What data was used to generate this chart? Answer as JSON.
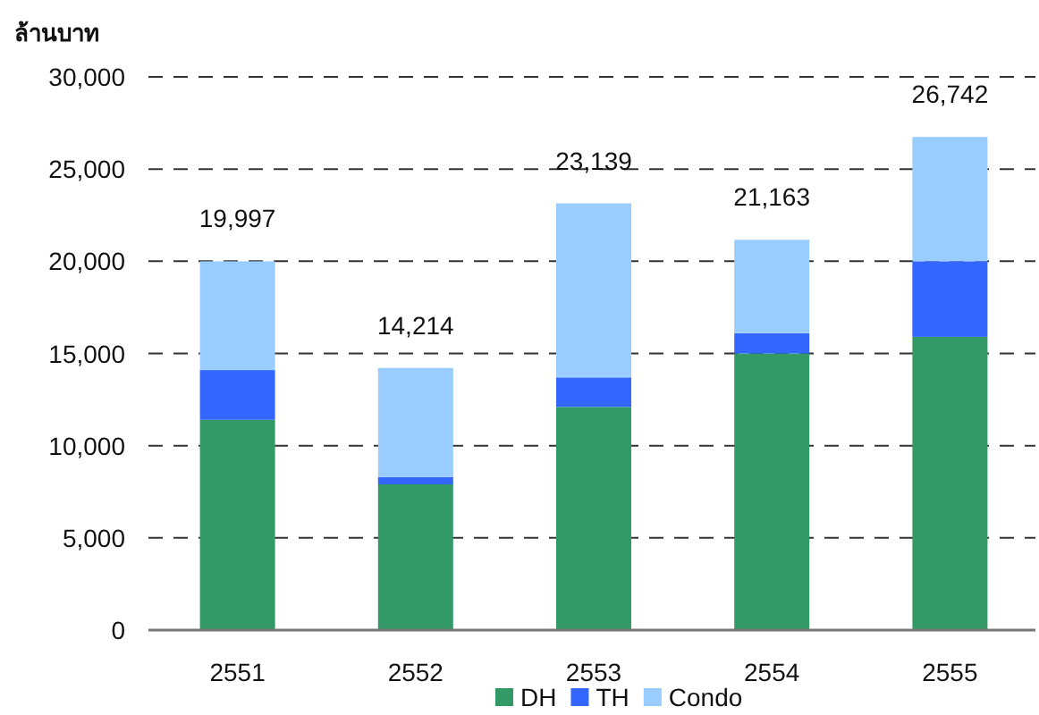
{
  "chart_data": {
    "type": "bar",
    "stacked": true,
    "ylabel": "ล้านบาท",
    "categories": [
      "2551",
      "2552",
      "2553",
      "2554",
      "2555"
    ],
    "series": [
      {
        "name": "DH",
        "color": "#339966",
        "values": [
          11400,
          7900,
          12100,
          15000,
          15900
        ]
      },
      {
        "name": "TH",
        "color": "#3366ff",
        "values": [
          2700,
          400,
          1600,
          1100,
          4100
        ]
      },
      {
        "name": "Condo",
        "color": "#99ccff",
        "values": [
          5897,
          5914,
          9439,
          5063,
          6742
        ]
      }
    ],
    "totals": [
      "19,997",
      "14,214",
      "23,139",
      "21,163",
      "26,742"
    ],
    "ylim": [
      0,
      30000
    ],
    "yticks": [
      {
        "value": 0,
        "label": "0"
      },
      {
        "value": 5000,
        "label": "5,000"
      },
      {
        "value": 10000,
        "label": "10,000"
      },
      {
        "value": 15000,
        "label": "15,000"
      },
      {
        "value": 20000,
        "label": "20,000"
      },
      {
        "value": 25000,
        "label": "25,000"
      },
      {
        "value": 30000,
        "label": "30,000"
      }
    ],
    "grid": "y",
    "legend": "bottom"
  }
}
